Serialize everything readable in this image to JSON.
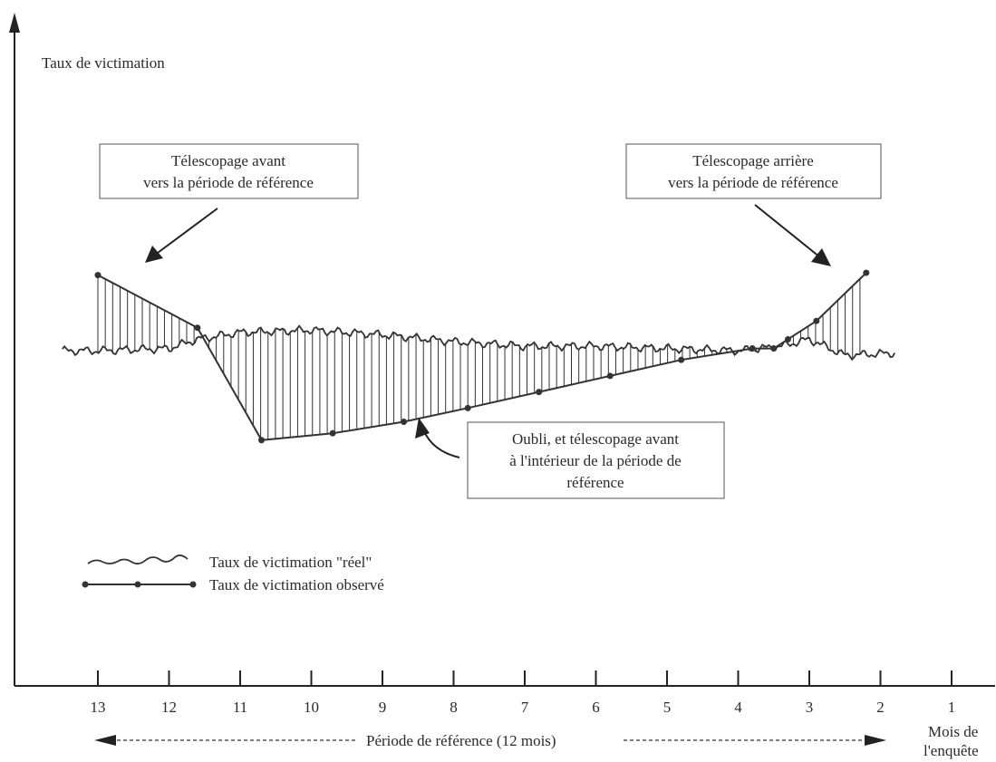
{
  "y_axis_label": "Taux de victimation",
  "x_axis_label_line1": "Mois de",
  "x_axis_label_line2": "l'enquête",
  "reference_period_label": "Période de référence (12 mois)",
  "ticks": [
    "13",
    "12",
    "11",
    "10",
    "9",
    "8",
    "7",
    "6",
    "5",
    "4",
    "3",
    "2",
    "1"
  ],
  "callouts": {
    "forward": {
      "line1": "Télescopage avant",
      "line2": "vers la période de référence"
    },
    "backward": {
      "line1": "Télescopage arrière",
      "line2": "vers la période de référence"
    },
    "recall": {
      "line1": "Oubli, et télescopage avant",
      "line2": "à l'intérieur de la période de",
      "line3": "référence"
    }
  },
  "legend": {
    "real": "Taux de victimation \"réel\"",
    "observed": "Taux de victimation observé"
  },
  "chart_data": {
    "type": "line",
    "series": [
      {
        "name": "Taux de victimation \"réel\"",
        "x": [
          13.5,
          13,
          12,
          11.6,
          11,
          10,
          9,
          8,
          7,
          6,
          5,
          4,
          3.4,
          3,
          2.5,
          1.8
        ],
        "values": [
          0.47,
          0.47,
          0.48,
          0.52,
          0.55,
          0.56,
          0.54,
          0.51,
          0.49,
          0.49,
          0.48,
          0.47,
          0.49,
          0.52,
          0.45,
          0.46
        ]
      },
      {
        "name": "Taux de victimation observé",
        "x": [
          13,
          11.6,
          10.7,
          9.7,
          8.7,
          7.8,
          6.8,
          5.8,
          4.8,
          3.8,
          3.5,
          3.3,
          2.9,
          2.2
        ],
        "values": [
          0.8,
          0.57,
          0.08,
          0.11,
          0.16,
          0.22,
          0.29,
          0.36,
          0.43,
          0.48,
          0.48,
          0.52,
          0.6,
          0.81
        ]
      }
    ]
  }
}
